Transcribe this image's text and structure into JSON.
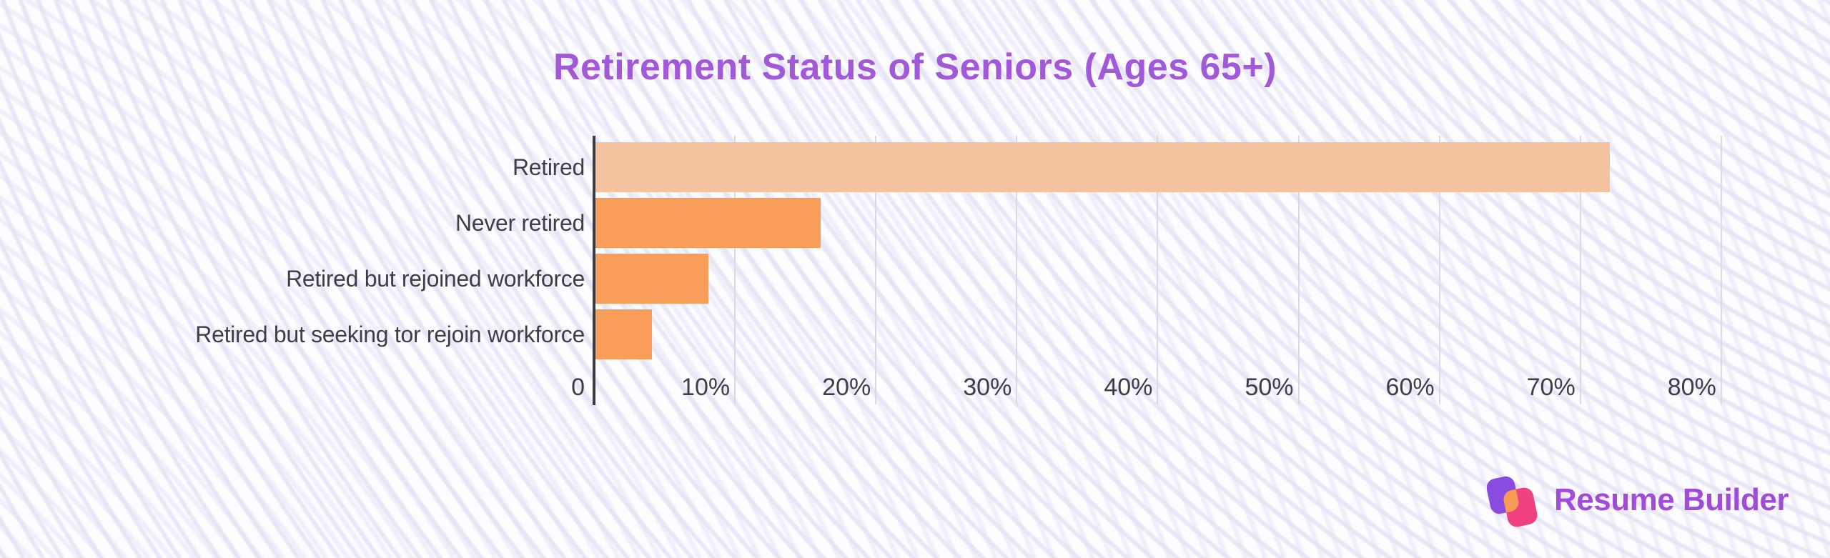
{
  "chart_data": {
    "type": "bar",
    "orientation": "horizontal",
    "title": "Retirement Status of Seniors (Ages 65+)",
    "categories": [
      "Retired",
      "Never retired",
      "Retired but rejoined workforce",
      "Retired but seeking tor rejoin workforce"
    ],
    "values": [
      72,
      16,
      8,
      4
    ],
    "unit": "percent",
    "xlabel": "",
    "ylabel": "",
    "xlim": [
      0,
      80
    ],
    "x_ticks": [
      "0",
      "10%",
      "20%",
      "30%",
      "40%",
      "50%",
      "60%",
      "70%",
      "80%"
    ],
    "grid": true,
    "legend": false,
    "bar_colors": [
      "#F5C29F",
      "#F99E58",
      "#F99E58",
      "#F99E58"
    ],
    "title_color": "#A158D9",
    "label_color": "#3F3E46",
    "axis_color": "#3A3A40",
    "gridline_color": "#DBD9E4"
  },
  "logo": {
    "text": "Resume Builder",
    "text_color": "#A04CD8",
    "icon": "resume-builder-mark",
    "icon_colors": {
      "left_shape": "#8A4BE0",
      "right_shape": "#EF4081",
      "overlap": "#F79A53"
    }
  }
}
